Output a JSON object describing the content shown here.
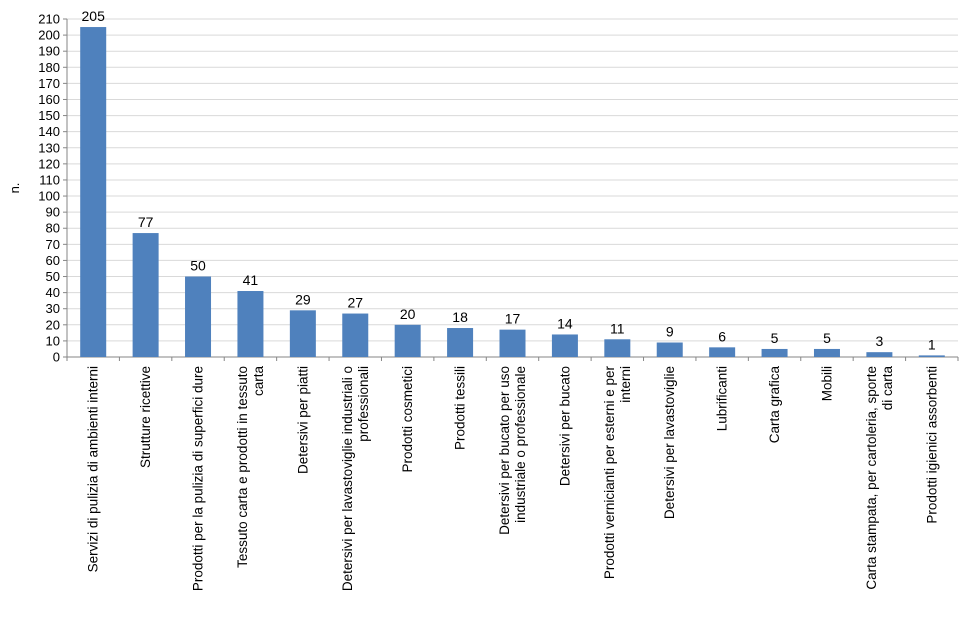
{
  "chart_data": {
    "type": "bar",
    "ylabel": "n.",
    "xlabel": "",
    "ylim": [
      0,
      210
    ],
    "ytick_step": 10,
    "grid": true,
    "bar_color": "#4f81bd",
    "categories": [
      [
        "Servizi di pulizia di ambienti interni"
      ],
      [
        "Strutture ricettive"
      ],
      [
        "Prodotti per la pulizia di superfici dure"
      ],
      [
        "Tessuto carta e prodotti in tessuto",
        "carta"
      ],
      [
        "Detersivi per piatti"
      ],
      [
        "Detersivi per lavastoviglie industriali o",
        "professionali"
      ],
      [
        "Prodotti cosmetici"
      ],
      [
        "Prodotti tessili"
      ],
      [
        "Detersivi per bucato per uso",
        "industriale o professionale"
      ],
      [
        "Detersivi per bucato"
      ],
      [
        "Prodotti vernicianti per esterni e per",
        "interni"
      ],
      [
        "Detersivi per lavastoviglie"
      ],
      [
        "Lubrificanti"
      ],
      [
        "Carta grafica"
      ],
      [
        "Mobili"
      ],
      [
        "Carta stampata, per cartoleria, sporte",
        "di carta"
      ],
      [
        "Prodotti igienici assorbenti"
      ]
    ],
    "values": [
      205,
      77,
      50,
      41,
      29,
      27,
      20,
      18,
      17,
      14,
      11,
      9,
      6,
      5,
      5,
      3,
      1
    ]
  }
}
